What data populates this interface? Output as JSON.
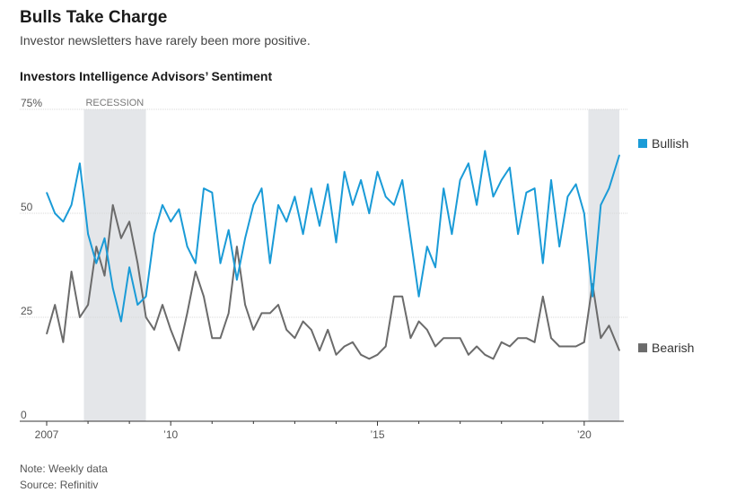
{
  "header": {
    "title": "Bulls Take Charge",
    "subtitle": "Investor newsletters have rarely been more positive."
  },
  "chart_data": {
    "type": "line",
    "title": "Investors Intelligence Advisors’ Sentiment",
    "xlabel": "",
    "ylabel": "",
    "x_range": [
      2007.0,
      2020.85
    ],
    "ylim": [
      0,
      75
    ],
    "y_ticks": [
      {
        "value": 75,
        "label": "75%"
      },
      {
        "value": 50,
        "label": "50"
      },
      {
        "value": 25,
        "label": "25"
      },
      {
        "value": 0,
        "label": "0"
      }
    ],
    "x_ticks": [
      {
        "value": 2007,
        "label": "2007"
      },
      {
        "value": 2010,
        "label": "’10"
      },
      {
        "value": 2015,
        "label": "’15"
      },
      {
        "value": 2020,
        "label": "’20"
      }
    ],
    "shaded_regions": [
      {
        "start": 2007.9,
        "end": 2009.4,
        "label": "RECESSION"
      },
      {
        "start": 2020.1,
        "end": 2020.85,
        "label": ""
      }
    ],
    "colors": {
      "bullish": "#1a9bd7",
      "bearish": "#6b6b6b",
      "recession": "#e4e6e9"
    },
    "series": [
      {
        "name": "Bullish",
        "x": [
          2007.0,
          2007.2,
          2007.4,
          2007.6,
          2007.8,
          2008.0,
          2008.2,
          2008.4,
          2008.6,
          2008.8,
          2009.0,
          2009.2,
          2009.4,
          2009.6,
          2009.8,
          2010.0,
          2010.2,
          2010.4,
          2010.6,
          2010.8,
          2011.0,
          2011.2,
          2011.4,
          2011.6,
          2011.8,
          2012.0,
          2012.2,
          2012.4,
          2012.6,
          2012.8,
          2013.0,
          2013.2,
          2013.4,
          2013.6,
          2013.8,
          2014.0,
          2014.2,
          2014.4,
          2014.6,
          2014.8,
          2015.0,
          2015.2,
          2015.4,
          2015.6,
          2015.8,
          2016.0,
          2016.2,
          2016.4,
          2016.6,
          2016.8,
          2017.0,
          2017.2,
          2017.4,
          2017.6,
          2017.8,
          2018.0,
          2018.2,
          2018.4,
          2018.6,
          2018.8,
          2019.0,
          2019.2,
          2019.4,
          2019.6,
          2019.8,
          2020.0,
          2020.2,
          2020.4,
          2020.6,
          2020.85
        ],
        "values": [
          55,
          50,
          48,
          52,
          62,
          45,
          38,
          44,
          32,
          24,
          37,
          28,
          30,
          45,
          52,
          48,
          51,
          42,
          38,
          56,
          55,
          38,
          46,
          34,
          44,
          52,
          56,
          38,
          52,
          48,
          54,
          45,
          56,
          47,
          57,
          43,
          60,
          52,
          58,
          50,
          60,
          54,
          52,
          58,
          44,
          30,
          42,
          37,
          56,
          45,
          58,
          62,
          52,
          65,
          54,
          58,
          61,
          45,
          55,
          56,
          38,
          58,
          42,
          54,
          57,
          50,
          30,
          52,
          56,
          64
        ]
      },
      {
        "name": "Bearish",
        "x": [
          2007.0,
          2007.2,
          2007.4,
          2007.6,
          2007.8,
          2008.0,
          2008.2,
          2008.4,
          2008.6,
          2008.8,
          2009.0,
          2009.2,
          2009.4,
          2009.6,
          2009.8,
          2010.0,
          2010.2,
          2010.4,
          2010.6,
          2010.8,
          2011.0,
          2011.2,
          2011.4,
          2011.6,
          2011.8,
          2012.0,
          2012.2,
          2012.4,
          2012.6,
          2012.8,
          2013.0,
          2013.2,
          2013.4,
          2013.6,
          2013.8,
          2014.0,
          2014.2,
          2014.4,
          2014.6,
          2014.8,
          2015.0,
          2015.2,
          2015.4,
          2015.6,
          2015.8,
          2016.0,
          2016.2,
          2016.4,
          2016.6,
          2016.8,
          2017.0,
          2017.2,
          2017.4,
          2017.6,
          2017.8,
          2018.0,
          2018.2,
          2018.4,
          2018.6,
          2018.8,
          2019.0,
          2019.2,
          2019.4,
          2019.6,
          2019.8,
          2020.0,
          2020.2,
          2020.4,
          2020.6,
          2020.85
        ],
        "values": [
          21,
          28,
          19,
          36,
          25,
          28,
          42,
          35,
          52,
          44,
          48,
          38,
          25,
          22,
          28,
          22,
          17,
          26,
          36,
          30,
          20,
          20,
          26,
          42,
          28,
          22,
          26,
          26,
          28,
          22,
          20,
          24,
          22,
          17,
          22,
          16,
          18,
          19,
          16,
          15,
          16,
          18,
          30,
          30,
          20,
          24,
          22,
          18,
          20,
          20,
          20,
          16,
          18,
          16,
          15,
          19,
          18,
          20,
          20,
          19,
          30,
          20,
          18,
          18,
          18,
          19,
          33,
          20,
          23,
          17
        ]
      }
    ],
    "legend": [
      {
        "name": "Bullish",
        "label": "Bullish",
        "position": "right, at last value"
      },
      {
        "name": "Bearish",
        "label": "Bearish",
        "position": "right, at last value"
      }
    ]
  },
  "footer": {
    "note": "Note: Weekly data",
    "source": "Source: Refinitiv"
  }
}
